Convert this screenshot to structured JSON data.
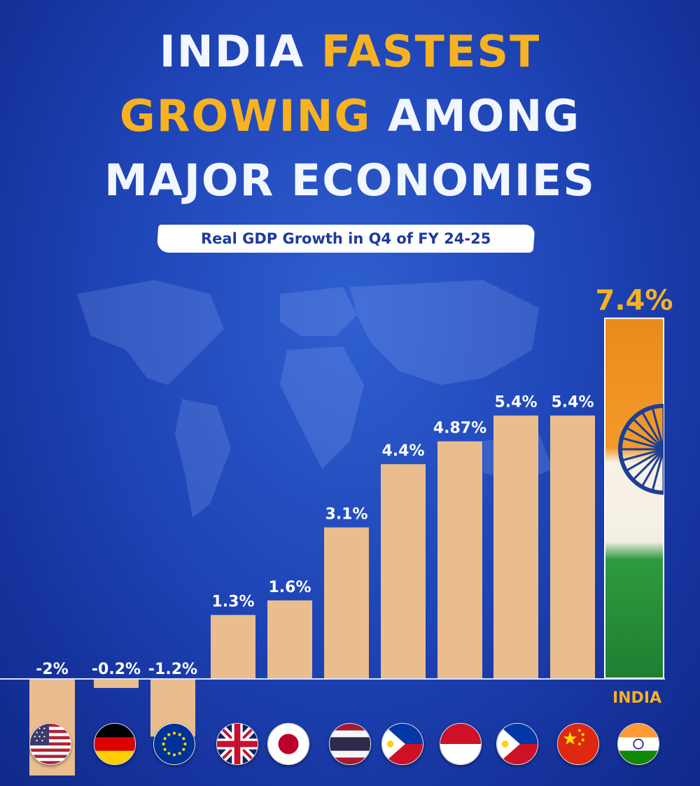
{
  "title": {
    "line1_a": "INDIA ",
    "line1_b": "FASTEST",
    "line2_a": "GROWING",
    "line2_b": " AMONG",
    "line3": "MAJOR ECONOMIES"
  },
  "subtitle": "Real GDP Growth in Q4 of FY 24-25",
  "highlight_label": "INDIA",
  "colors": {
    "bar": "#e9bd8e",
    "accent": "#f6b221",
    "label": "#ffffff",
    "background": "#1f46b8"
  },
  "chart_data": {
    "type": "bar",
    "title": "Real GDP Growth in Q4 of FY 24-25",
    "xlabel": "",
    "ylabel": "",
    "values": [
      -2,
      -0.2,
      -1.2,
      1.3,
      1.6,
      3.1,
      4.4,
      4.87,
      5.4,
      5.4,
      7.4
    ],
    "value_labels": [
      "-2%",
      "-0.2%",
      "-1.2%",
      "1.3%",
      "1.6%",
      "3.1%",
      "4.4%",
      "4.87%",
      "5.4%",
      "5.4%",
      "7.4%"
    ],
    "flag_icons": [
      "usa-flag-icon",
      "germany-flag-icon",
      "eu-flag-icon",
      "uk-flag-icon",
      "japan-flag-icon",
      "thailand-flag-icon",
      "philippines-flag-icon",
      "indonesia-flag-icon",
      "philippines-flag-icon",
      "china-flag-icon",
      "india-flag-icon"
    ],
    "highlight_index": 10,
    "grid": false,
    "legend": "none"
  }
}
